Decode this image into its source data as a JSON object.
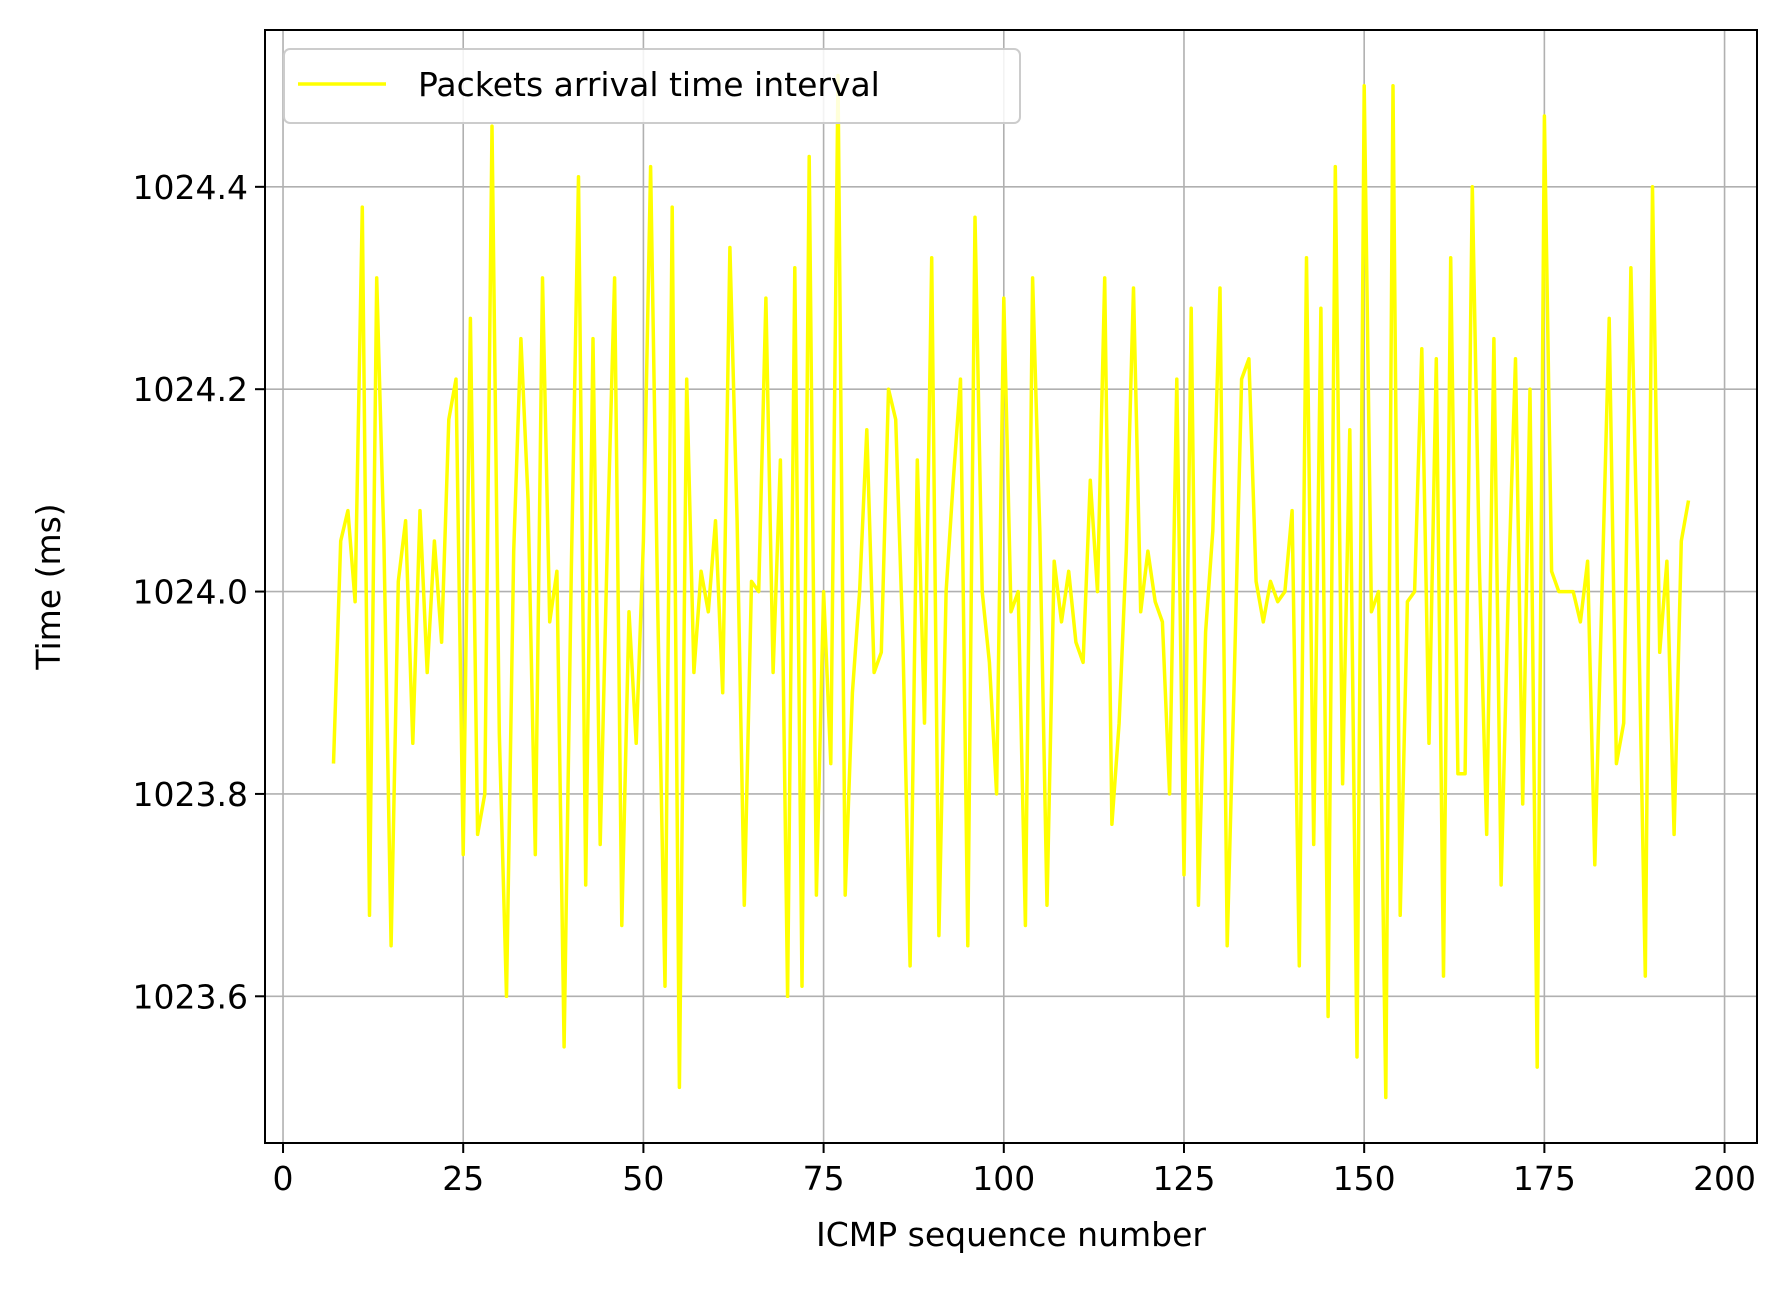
{
  "chart_data": {
    "type": "line",
    "title": "",
    "xlabel": "ICMP sequence number",
    "ylabel": "Time (ms)",
    "xlim": [
      -2.5,
      204.5
    ],
    "ylim": [
      1023.455,
      1024.555
    ],
    "xticks": [
      0,
      25,
      50,
      75,
      100,
      125,
      150,
      175,
      200
    ],
    "xtick_labels": [
      "0",
      "25",
      "50",
      "75",
      "100",
      "125",
      "150",
      "175",
      "200"
    ],
    "yticks": [
      1023.6,
      1023.8,
      1024.0,
      1024.2,
      1024.4
    ],
    "ytick_labels": [
      "1023.6",
      "1023.8",
      "1024.0",
      "1024.2",
      "1024.4"
    ],
    "grid": true,
    "legend_position": "upper-left",
    "series": [
      {
        "name": "Packets arrival time interval",
        "color": "#ffff00",
        "x": [
          7,
          8,
          9,
          10,
          11,
          12,
          13,
          14,
          15,
          16,
          17,
          18,
          19,
          20,
          21,
          22,
          23,
          24,
          25,
          26,
          27,
          28,
          29,
          30,
          31,
          32,
          33,
          34,
          35,
          36,
          37,
          38,
          39,
          40,
          41,
          42,
          43,
          44,
          45,
          46,
          47,
          48,
          49,
          50,
          51,
          52,
          53,
          54,
          55,
          56,
          57,
          58,
          59,
          60,
          61,
          62,
          63,
          64,
          65,
          66,
          67,
          68,
          69,
          70,
          71,
          72,
          73,
          74,
          75,
          76,
          77,
          78,
          79,
          80,
          81,
          82,
          83,
          84,
          85,
          86,
          87,
          88,
          89,
          90,
          91,
          92,
          93,
          94,
          95,
          96,
          97,
          98,
          99,
          100,
          101,
          102,
          103,
          104,
          105,
          106,
          107,
          108,
          109,
          110,
          111,
          112,
          113,
          114,
          115,
          116,
          117,
          118,
          119,
          120,
          121,
          122,
          123,
          124,
          125,
          126,
          127,
          128,
          129,
          130,
          131,
          132,
          133,
          134,
          135,
          136,
          137,
          138,
          139,
          140,
          141,
          142,
          143,
          144,
          145,
          146,
          147,
          148,
          149,
          150,
          151,
          152,
          153,
          154,
          155,
          156,
          157,
          158,
          159,
          160,
          161,
          162,
          163,
          164,
          165,
          166,
          167,
          168,
          169,
          170,
          171,
          172,
          173,
          174,
          175,
          176,
          177,
          178,
          179,
          180,
          181,
          182,
          183,
          184,
          185,
          186,
          187,
          188,
          189,
          190,
          191,
          192,
          193,
          194,
          195
        ],
        "values": [
          1023.83,
          1024.05,
          1024.08,
          1023.99,
          1024.38,
          1023.68,
          1024.31,
          1024.05,
          1023.65,
          1024.01,
          1024.07,
          1023.85,
          1024.08,
          1023.92,
          1024.05,
          1023.95,
          1024.17,
          1024.21,
          1023.74,
          1024.27,
          1023.76,
          1023.8,
          1024.46,
          1023.86,
          1023.6,
          1024.04,
          1024.25,
          1024.09,
          1023.74,
          1024.31,
          1023.97,
          1024.02,
          1023.55,
          1024.02,
          1024.41,
          1023.71,
          1024.25,
          1023.75,
          1024.05,
          1024.31,
          1023.67,
          1023.98,
          1023.85,
          1024.05,
          1024.42,
          1023.98,
          1023.61,
          1024.38,
          1023.51,
          1024.21,
          1023.92,
          1024.02,
          1023.98,
          1024.07,
          1023.9,
          1024.34,
          1024.07,
          1023.69,
          1024.01,
          1024.0,
          1024.29,
          1023.92,
          1024.13,
          1023.6,
          1024.32,
          1023.61,
          1024.43,
          1023.7,
          1024.0,
          1023.83,
          1024.51,
          1023.7,
          1023.9,
          1024.0,
          1024.16,
          1023.92,
          1023.94,
          1024.2,
          1024.17,
          1023.95,
          1023.63,
          1024.13,
          1023.87,
          1024.33,
          1023.66,
          1024.0,
          1024.11,
          1024.21,
          1023.65,
          1024.37,
          1024.0,
          1023.93,
          1023.8,
          1024.29,
          1023.98,
          1024.0,
          1023.67,
          1024.31,
          1024.06,
          1023.69,
          1024.03,
          1023.97,
          1024.02,
          1023.95,
          1023.93,
          1024.11,
          1024.0,
          1024.31,
          1023.77,
          1023.87,
          1024.04,
          1024.3,
          1023.98,
          1024.04,
          1023.99,
          1023.97,
          1023.8,
          1024.21,
          1023.72,
          1024.28,
          1023.69,
          1023.96,
          1024.06,
          1024.3,
          1023.65,
          1023.92,
          1024.21,
          1024.23,
          1024.01,
          1023.97,
          1024.01,
          1023.99,
          1024.0,
          1024.08,
          1023.63,
          1024.33,
          1023.75,
          1024.28,
          1023.58,
          1024.42,
          1023.81,
          1024.16,
          1023.54,
          1024.5,
          1023.98,
          1024.0,
          1023.5,
          1024.5,
          1023.68,
          1023.99,
          1024.0,
          1024.24,
          1023.85,
          1024.23,
          1023.62,
          1024.33,
          1023.82,
          1023.82,
          1024.4,
          1024.02,
          1023.76,
          1024.25,
          1023.71,
          1024.0,
          1024.23,
          1023.79,
          1024.2,
          1023.53,
          1024.47,
          1024.02,
          1024.0,
          1024.0,
          1024.0,
          1023.97,
          1024.03,
          1023.73,
          1024.0,
          1024.27,
          1023.83,
          1023.87,
          1024.32,
          1024.0,
          1023.62,
          1024.4,
          1023.94,
          1024.03,
          1023.76,
          1024.05,
          1024.09
        ]
      }
    ]
  }
}
